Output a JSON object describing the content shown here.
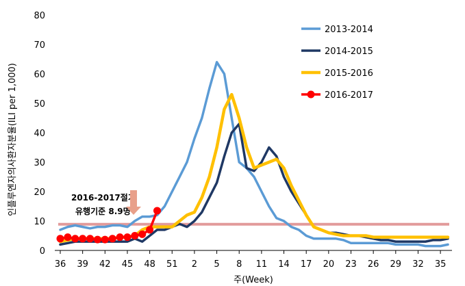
{
  "chart_data": {
    "type": "line",
    "xlabel": "주(Week)",
    "ylabel": "인플루엔자의사환자분율(ILI per 1,000)",
    "ylim": [
      0,
      80
    ],
    "yticks": [
      "0",
      "10",
      "20",
      "30",
      "40",
      "50",
      "60",
      "70",
      "80"
    ],
    "x_labels": [
      "36",
      "39",
      "42",
      "45",
      "48",
      "51",
      "2",
      "5",
      "8",
      "11",
      "14",
      "17",
      "20",
      "23",
      "26",
      "29",
      "32",
      "35"
    ],
    "legend_position": "top-right",
    "threshold": {
      "value": 8.9,
      "color": "#e29a9a",
      "label_line1": "2016-2017절기",
      "label_line2": "유행기준 8.9명"
    },
    "series": [
      {
        "name": "2013-2014",
        "color": "#5b9bd5",
        "values": [
          7,
          8,
          8.5,
          8,
          7.5,
          8,
          8,
          8.5,
          8.5,
          8,
          10,
          11.5,
          11.5,
          12,
          15,
          20,
          25,
          30,
          38,
          45,
          55,
          64,
          60,
          45,
          30,
          28,
          25,
          20,
          15,
          11,
          10,
          8,
          7,
          5,
          4,
          4,
          4,
          4,
          3.5,
          2.5,
          2.5,
          2.5,
          2.5,
          2.5,
          2.5,
          2,
          2,
          2,
          2,
          1.5,
          1.5,
          1.5,
          2
        ]
      },
      {
        "name": "2014-2015",
        "color": "#1f3864",
        "values": [
          2,
          2.5,
          3,
          3,
          3,
          3,
          3,
          3,
          3,
          3,
          4,
          3,
          5,
          7,
          7,
          8,
          9,
          8,
          10,
          13,
          18,
          23,
          32,
          40,
          43,
          28,
          27,
          30,
          35,
          32,
          25,
          20,
          16,
          12,
          8,
          7,
          6,
          6,
          5.5,
          5,
          5,
          4.5,
          4,
          3.5,
          3.5,
          3,
          3,
          3,
          3,
          3,
          3.5,
          3.5,
          4
        ]
      },
      {
        "name": "2015-2016",
        "color": "#ffc000",
        "values": [
          3,
          3.5,
          4,
          4,
          4,
          4,
          4,
          4,
          4.5,
          4.5,
          5,
          7,
          8,
          8,
          8,
          8,
          10,
          12,
          13,
          18,
          25,
          35,
          48,
          53,
          45,
          35,
          28,
          29,
          30,
          31,
          28,
          22,
          17,
          12,
          8,
          7,
          6,
          5.5,
          5,
          5,
          5,
          5,
          4.5,
          4.5,
          4.5,
          4.5,
          4.5,
          4.5,
          4.5,
          4.5,
          4.5,
          4.5,
          4.5
        ]
      },
      {
        "name": "2016-2017",
        "color": "#ff0000",
        "values": [
          4,
          4.5,
          4,
          4,
          4,
          3.7,
          3.7,
          4,
          4.5,
          4.5,
          5,
          5.5,
          7,
          13.5
        ]
      }
    ]
  }
}
